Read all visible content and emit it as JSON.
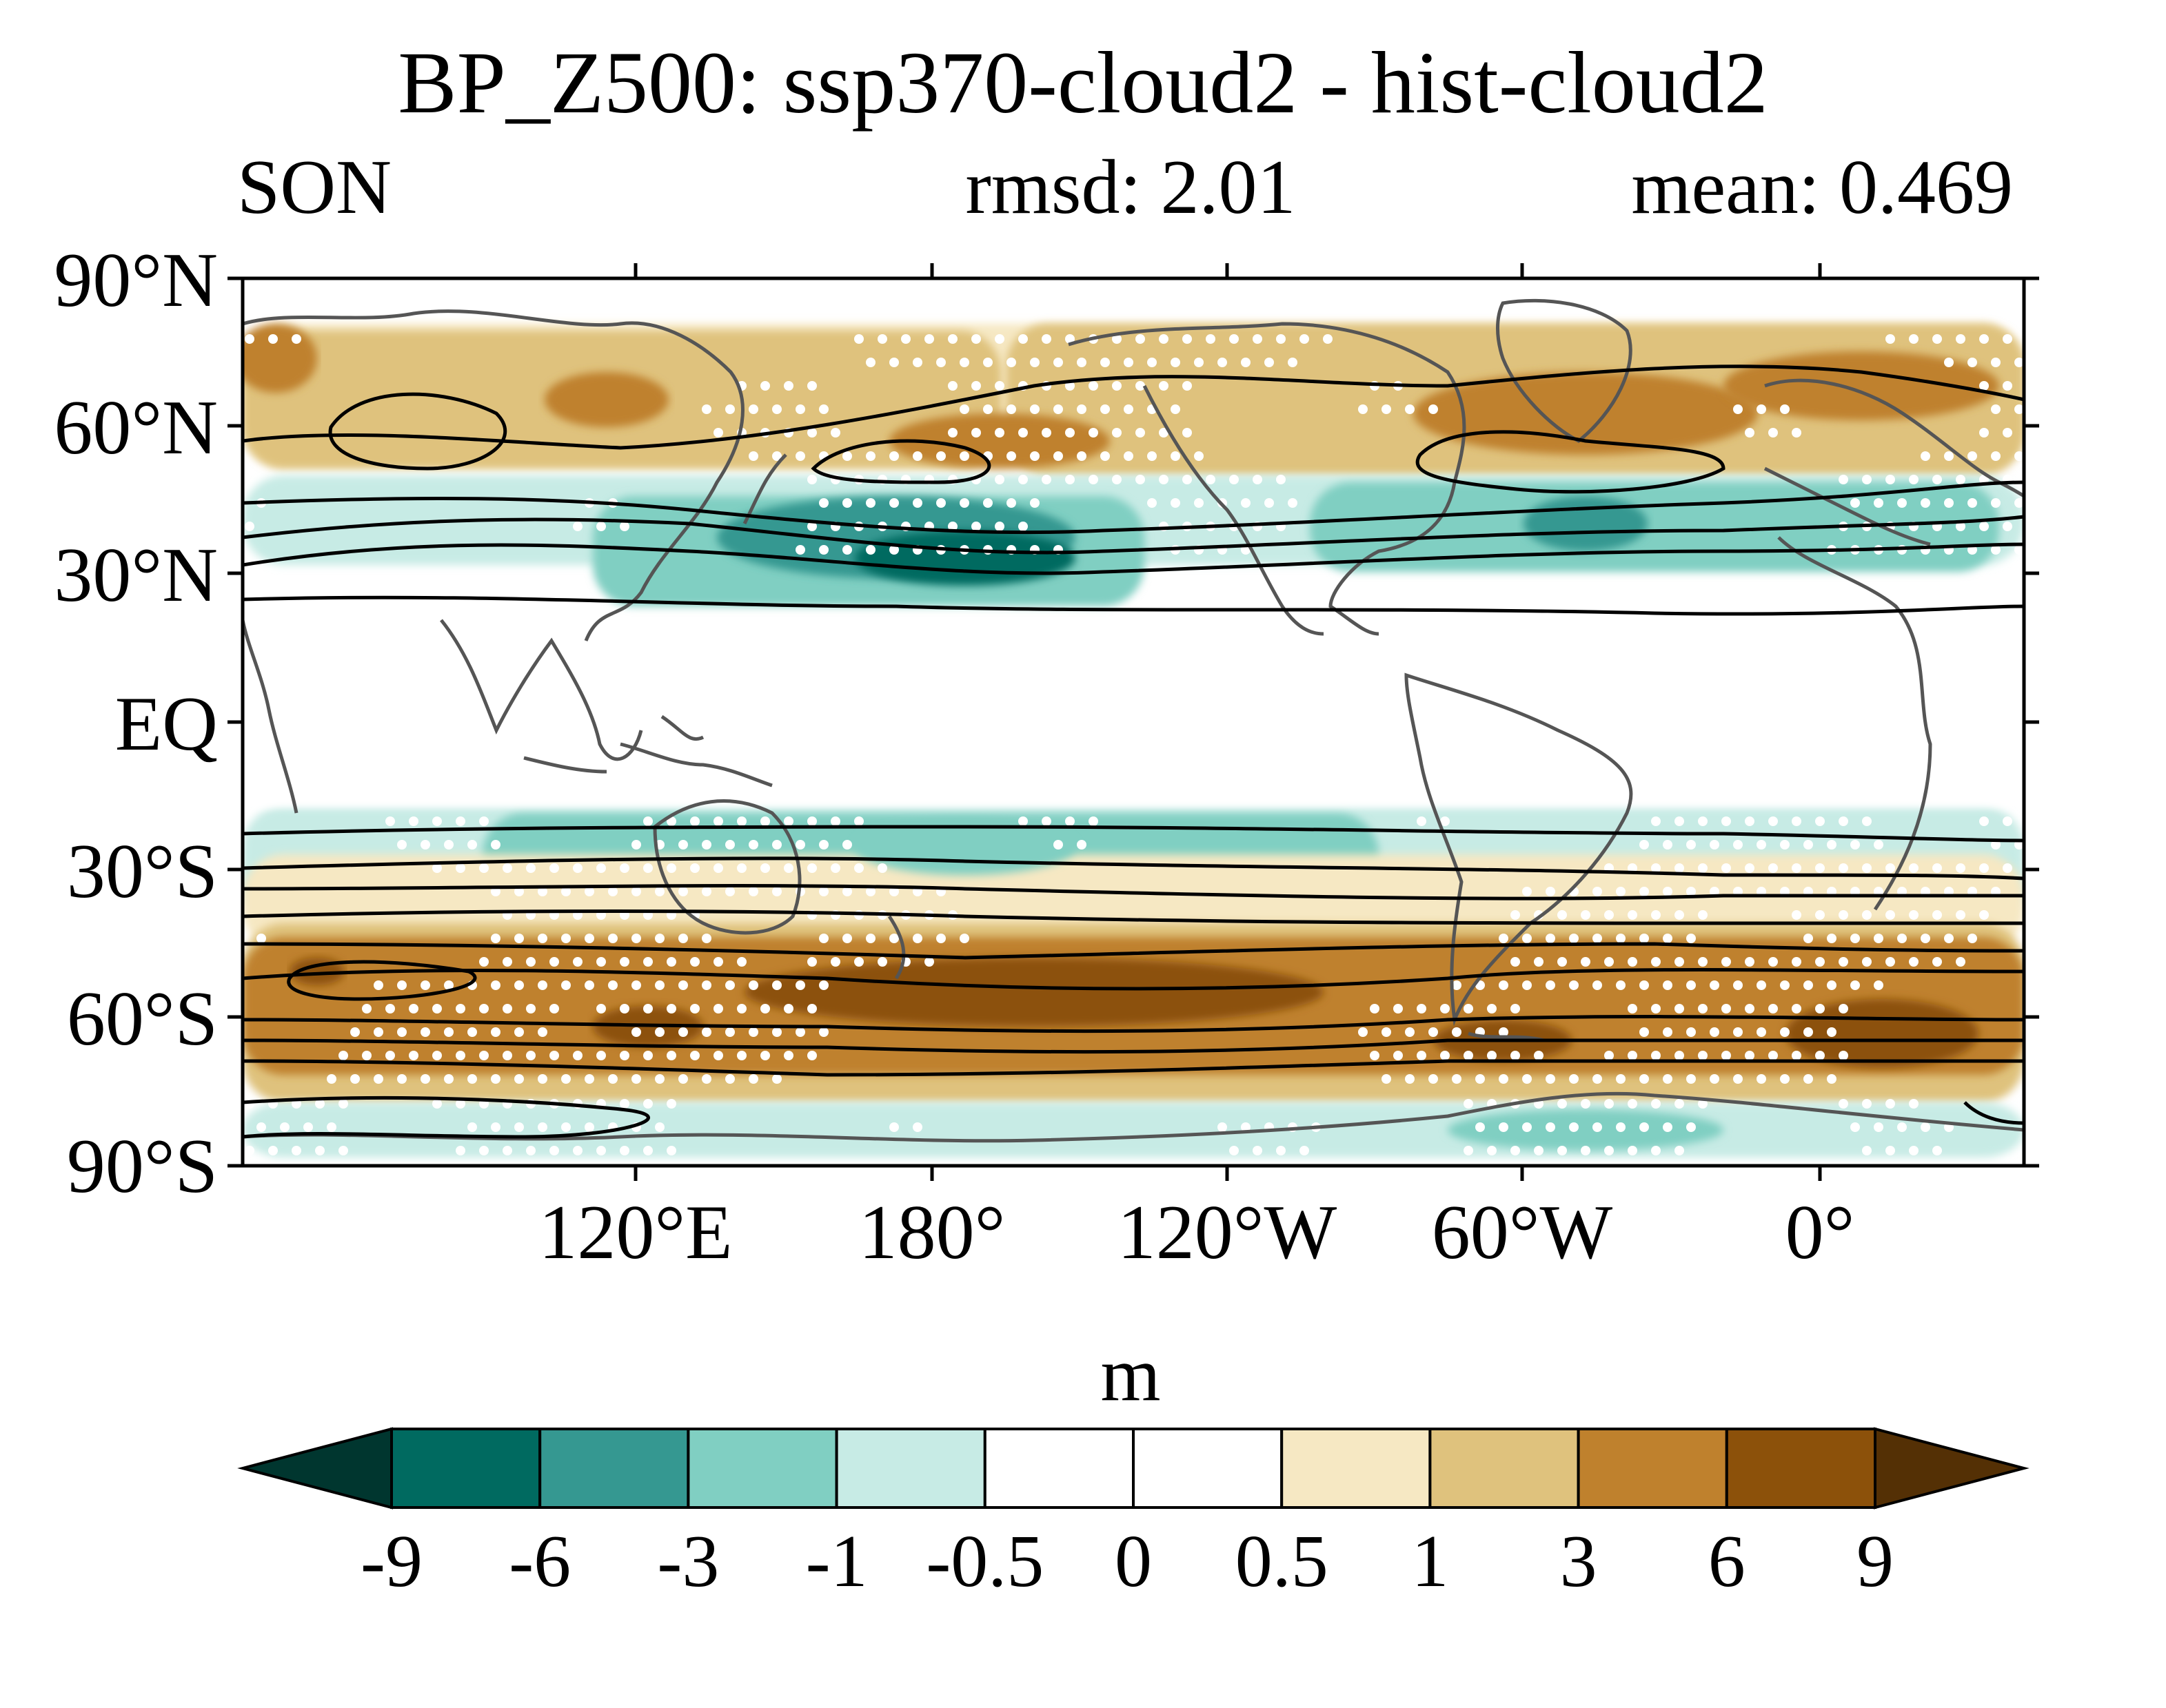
{
  "title": "BP_Z500: ssp370-cloud2 - hist-cloud2",
  "season": "SON",
  "rmsd_label": "rmsd: 2.01",
  "mean_label": "mean: 0.469",
  "lat_labels": [
    "90°N",
    "60°N",
    "30°N",
    "EQ",
    "30°S",
    "60°S",
    "90°S"
  ],
  "lon_labels": [
    "120°E",
    "180°",
    "120°W",
    "60°W",
    "0°"
  ],
  "colorbar": {
    "unit_label": "m",
    "tick_labels": [
      "-9",
      "-6",
      "-3",
      "-1",
      "-0.5",
      "0",
      "0.5",
      "1",
      "3",
      "6",
      "9"
    ],
    "colors": [
      "#00362f",
      "#006a60",
      "#359891",
      "#80cfc2",
      "#c7ebe5",
      "#ffffff",
      "#ffffff",
      "#f6e8c3",
      "#dfc27d",
      "#bf812d",
      "#8c510a",
      "#543005"
    ]
  },
  "map_colors": {
    "neg_strong": "#359891",
    "neg_mid": "#80cfc2",
    "neg_weak": "#c7ebe5",
    "pos_weak": "#f6e8c3",
    "pos_mid": "#dfc27d",
    "pos_strong": "#bf812d",
    "pos_vstrong": "#8c510a",
    "land_outline": "#555555",
    "contour": "#000000",
    "stipple": "#ffffff"
  }
}
